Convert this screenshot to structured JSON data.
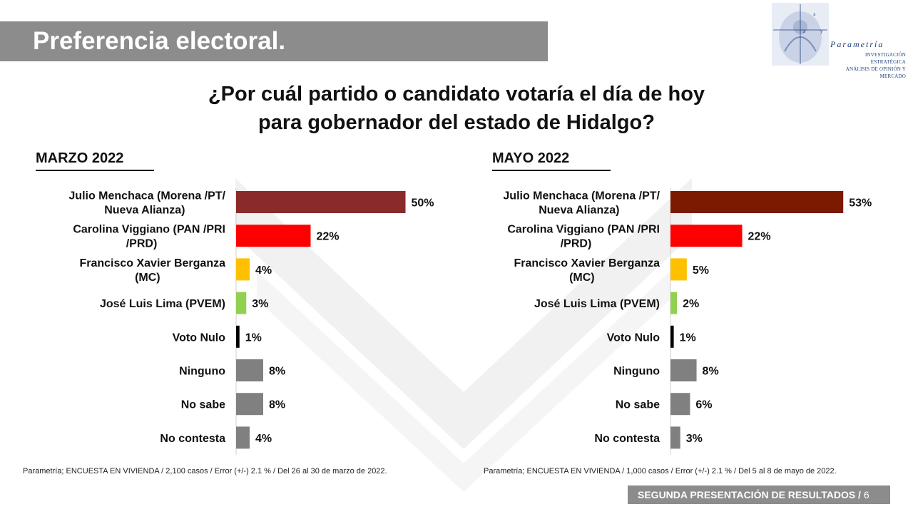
{
  "header": {
    "title": "Preferencia electoral.",
    "question_line1": "¿Por cuál partido o candidato votaría el día de hoy",
    "question_line2": "para gobernador del estado de Hidalgo?"
  },
  "logo": {
    "name": "Parametría",
    "subtitle_line1": "Investigación estratégica",
    "subtitle_line2": "Análisis de opinión y mercado"
  },
  "chart_data": [
    {
      "type": "bar",
      "orientation": "horizontal",
      "title": "MARZO 2022",
      "categories": [
        [
          "Julio Menchaca (Morena /PT/",
          "Nueva Alianza)"
        ],
        [
          "Carolina Viggiano (PAN /PRI",
          "/PRD)"
        ],
        [
          "Francisco Xavier Berganza",
          "(MC)"
        ],
        [
          "José Luis Lima (PVEM)"
        ],
        [
          "Voto Nulo"
        ],
        [
          "Ninguno"
        ],
        [
          "No sabe"
        ],
        [
          "No contesta"
        ]
      ],
      "values": [
        50,
        22,
        4,
        3,
        1,
        8,
        8,
        4
      ],
      "value_labels": [
        "50%",
        "22%",
        "4%",
        "3%",
        "1%",
        "8%",
        "8%",
        "4%"
      ],
      "colors": [
        "#8b2a2a",
        "#ff0000",
        "#ffc000",
        "#92d050",
        "#000000",
        "#808080",
        "#808080",
        "#808080"
      ],
      "xlim": [
        0,
        60
      ],
      "source": "Parametría; ENCUESTA EN VIVIENDA / 2,100 casos / Error (+/-) 2.1 % / Del 26 al 30 de marzo de 2022."
    },
    {
      "type": "bar",
      "orientation": "horizontal",
      "title": "MAYO 2022",
      "categories": [
        [
          "Julio Menchaca (Morena /PT/",
          "Nueva Alianza)"
        ],
        [
          "Carolina Viggiano (PAN /PRI",
          "/PRD)"
        ],
        [
          "Francisco Xavier Berganza",
          "(MC)"
        ],
        [
          "José Luis Lima (PVEM)"
        ],
        [
          "Voto Nulo"
        ],
        [
          "Ninguno"
        ],
        [
          "No sabe"
        ],
        [
          "No contesta"
        ]
      ],
      "values": [
        53,
        22,
        5,
        2,
        1,
        8,
        6,
        3
      ],
      "value_labels": [
        "53%",
        "22%",
        "5%",
        "2%",
        "1%",
        "8%",
        "6%",
        "3%"
      ],
      "colors": [
        "#7b1a00",
        "#ff0000",
        "#ffc000",
        "#92d050",
        "#000000",
        "#808080",
        "#808080",
        "#808080"
      ],
      "xlim": [
        0,
        60
      ],
      "source": "Parametría; ENCUESTA EN VIVIENDA / 1,000 casos / Error (+/-) 2.1 % / Del 5 al 8 de mayo de 2022."
    }
  ],
  "footer": {
    "label": "SEGUNDA PRESENTACIÓN DE RESULTADOS",
    "separator": " / ",
    "page": "6"
  }
}
